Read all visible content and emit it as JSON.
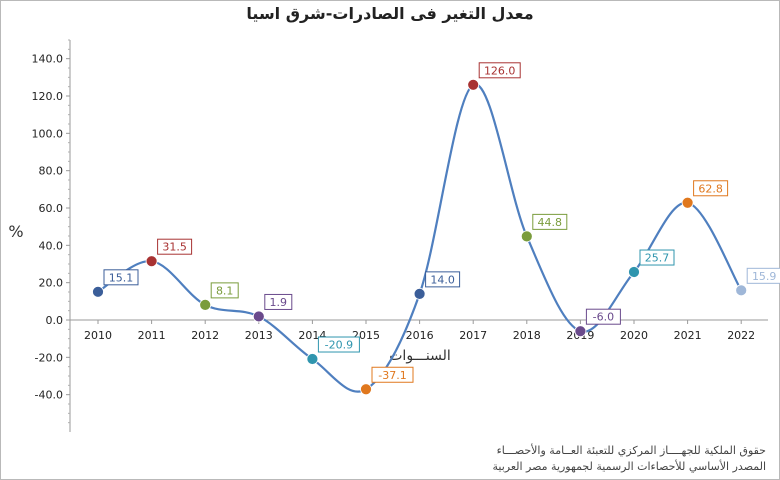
{
  "title": "معدل التغير فى الصادرات-شرق اسيا",
  "footer": {
    "line1": "حقوق الملكية للجهــــاز المركزي للتعبئة العــامة والأحصـــاء",
    "line2": "المصدر الأساسي للأحصاءات الرسمية لجمهورية مصر العربية"
  },
  "chart_data": {
    "type": "line",
    "title": "معدل التغير فى الصادرات-شرق اسيا",
    "xlabel": "السنـــوات",
    "ylabel": "%",
    "ylim": [
      -60,
      150
    ],
    "yticks": [
      -40.0,
      -20.0,
      0.0,
      20.0,
      40.0,
      60.0,
      80.0,
      100.0,
      120.0,
      140.0
    ],
    "ytick_labels": [
      "-40.0",
      "-20.0",
      "0.0",
      "20.0",
      "40.0",
      "60.0",
      "80.0",
      "100.0",
      "120.0",
      "140.0"
    ],
    "grid": false,
    "legend": "none",
    "line_color": "#4f7fbf",
    "categories": [
      "2010",
      "2011",
      "2012",
      "2013",
      "2014",
      "2015",
      "2016",
      "2017",
      "2018",
      "2019",
      "2020",
      "2021",
      "2022"
    ],
    "series": [
      {
        "values": [
          15.1,
          31.5,
          8.1,
          1.9,
          -20.9,
          -37.1,
          14.0,
          126.0,
          44.8,
          -6.0,
          25.7,
          62.8,
          15.9
        ],
        "labels": [
          "15.1",
          "31.5",
          "8.1",
          "1.9",
          "-20.9",
          "-37.1",
          "14.0",
          "126.0",
          "44.8",
          "-6.0",
          "25.7",
          "62.8",
          "15.9"
        ],
        "point_colors": [
          "#3b5e99",
          "#a83232",
          "#7a9c3c",
          "#6a4a8c",
          "#2f95ae",
          "#e0781e",
          "#3b5e99",
          "#a83232",
          "#7a9c3c",
          "#6a4a8c",
          "#2f95ae",
          "#e0781e",
          "#9fb7d8"
        ]
      }
    ]
  }
}
